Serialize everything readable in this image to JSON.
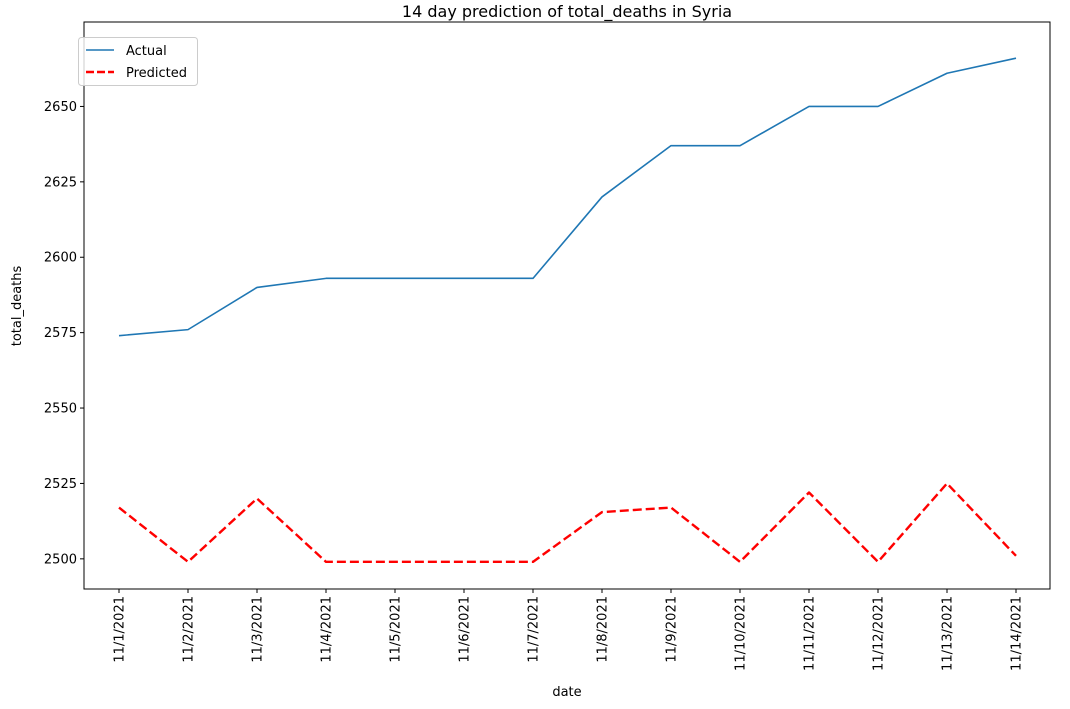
{
  "chart_data": {
    "type": "line",
    "title": "14 day prediction of total_deaths in Syria",
    "xlabel": "date",
    "ylabel": "total_deaths",
    "categories": [
      "11/1/2021",
      "11/2/2021",
      "11/3/2021",
      "11/4/2021",
      "11/5/2021",
      "11/6/2021",
      "11/7/2021",
      "11/8/2021",
      "11/9/2021",
      "11/10/2021",
      "11/11/2021",
      "11/12/2021",
      "11/13/2021",
      "11/14/2021"
    ],
    "series": [
      {
        "name": "Actual",
        "color": "#1f77b4",
        "style": "solid",
        "values": [
          2574,
          2576,
          2590,
          2593,
          2593,
          2593,
          2593,
          2620,
          2637,
          2637,
          2650,
          2650,
          2661,
          2666
        ]
      },
      {
        "name": "Predicted",
        "color": "#ff0000",
        "style": "dashed",
        "values": [
          2517,
          2499,
          2520,
          2499,
          2499,
          2499,
          2499,
          2515.5,
          2517,
          2499,
          2522,
          2499,
          2525,
          2501
        ]
      }
    ],
    "yticks": [
      2500,
      2525,
      2550,
      2575,
      2600,
      2625,
      2650
    ],
    "ylim": [
      2490,
      2678
    ],
    "grid": false,
    "legend": "top-left"
  }
}
